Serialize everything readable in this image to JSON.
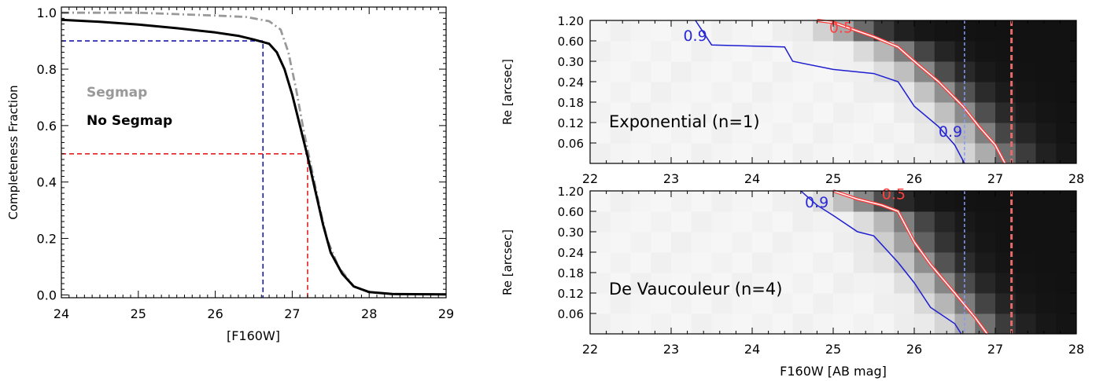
{
  "chart_data": [
    {
      "type": "line",
      "title": "",
      "xlabel": "[F160W]",
      "ylabel": "Completeness Fraction",
      "xlim": [
        24,
        29
      ],
      "ylim": [
        -0.01,
        1.02
      ],
      "xticks": [
        "24",
        "25",
        "26",
        "27",
        "28",
        "29"
      ],
      "yticks": [
        "0.0",
        "0.2",
        "0.4",
        "0.6",
        "0.8",
        "1.0"
      ],
      "grid": false,
      "legend_placement": "center-left",
      "series": [
        {
          "name": "Segmap",
          "color": "#999999",
          "style": "dash-dot",
          "x": [
            24.0,
            24.5,
            25.0,
            25.5,
            26.0,
            26.4,
            26.7,
            26.85,
            26.95,
            27.05,
            27.15,
            27.25,
            27.35,
            27.45,
            27.6,
            27.8,
            28.0,
            28.3,
            29.0
          ],
          "y": [
            1.0,
            1.0,
            1.0,
            0.995,
            0.99,
            0.985,
            0.97,
            0.94,
            0.86,
            0.73,
            0.58,
            0.45,
            0.32,
            0.2,
            0.1,
            0.03,
            0.01,
            0.003,
            0.002
          ]
        },
        {
          "name": "No Segmap",
          "color": "#000000",
          "style": "solid",
          "x": [
            24.0,
            24.5,
            25.0,
            25.5,
            26.0,
            26.3,
            26.5,
            26.7,
            26.8,
            26.9,
            27.0,
            27.1,
            27.2,
            27.3,
            27.4,
            27.5,
            27.65,
            27.8,
            28.0,
            28.3,
            29.0
          ],
          "y": [
            0.975,
            0.968,
            0.958,
            0.945,
            0.93,
            0.918,
            0.905,
            0.89,
            0.86,
            0.8,
            0.71,
            0.6,
            0.49,
            0.37,
            0.25,
            0.15,
            0.075,
            0.03,
            0.01,
            0.003,
            0.002
          ]
        }
      ],
      "reference_lines": [
        {
          "color": "#1a1aa8",
          "x": 26.62,
          "y": 0.9
        },
        {
          "color": "#e02020",
          "x": 27.2,
          "y": 0.5
        }
      ]
    },
    {
      "type": "heatmap",
      "title": "",
      "annotation": "Exponential (n=1)",
      "xlabel": "",
      "ylabel": "Re [arcsec]",
      "xlim": [
        22,
        28
      ],
      "xticks": [
        "22",
        "23",
        "24",
        "25",
        "26",
        "27",
        "28"
      ],
      "y_categories": [
        "0.06",
        "0.12",
        "0.18",
        "0.24",
        "0.30",
        "0.60",
        "1.20"
      ],
      "n_x_bins": 24,
      "cell_values_note": "completeness per bin, 1 = light, 0 = black",
      "contours": [
        {
          "label": "0.9",
          "color": "#1f1fd0",
          "x": [
            23.3,
            23.5,
            24.4,
            24.5,
            25.0,
            25.5,
            25.8,
            26.0,
            26.3,
            26.5,
            26.62
          ],
          "y": [
            7.0,
            5.8,
            5.7,
            5.0,
            4.6,
            4.4,
            4.0,
            2.8,
            1.8,
            0.9,
            0.0
          ]
        },
        {
          "label": "0.5",
          "color": "#ff3a3a",
          "x": [
            24.8,
            25.0,
            25.5,
            25.8,
            26.0,
            26.3,
            26.6,
            26.8,
            27.0,
            27.12
          ],
          "y": [
            7.0,
            6.9,
            6.2,
            5.7,
            5.0,
            4.0,
            2.8,
            1.8,
            0.9,
            0.0
          ]
        }
      ],
      "contour_labels": [
        {
          "text": "0.9",
          "x": 23.15,
          "y": 6.0
        },
        {
          "text": "0.5",
          "x": 24.95,
          "y": 6.4
        },
        {
          "text": "0.9",
          "x": 26.3,
          "y": 1.3
        }
      ],
      "reference_lines": [
        {
          "color": "#8899ff",
          "x": 26.62
        },
        {
          "color": "#e56a6a",
          "x": 27.2
        }
      ]
    },
    {
      "type": "heatmap",
      "title": "",
      "annotation": "De Vaucouleur (n=4)",
      "xlabel": "F160W [AB mag]",
      "ylabel": "Re [arcsec]",
      "xlim": [
        22,
        28
      ],
      "xticks": [
        "22",
        "23",
        "24",
        "25",
        "26",
        "27",
        "28"
      ],
      "y_categories": [
        "0.06",
        "0.12",
        "0.18",
        "0.24",
        "0.30",
        "0.60",
        "1.20"
      ],
      "n_x_bins": 24,
      "cell_values_note": "completeness per bin, 1 = light, 0 = black",
      "contours": [
        {
          "label": "0.9",
          "color": "#1f1fd0",
          "x": [
            24.6,
            24.8,
            25.0,
            25.3,
            25.5,
            25.8,
            26.0,
            26.2,
            26.5,
            26.58
          ],
          "y": [
            7.0,
            6.3,
            5.8,
            5.0,
            4.8,
            3.5,
            2.5,
            1.3,
            0.5,
            0.0
          ]
        },
        {
          "label": "0.5",
          "color": "#ff3a3a",
          "x": [
            25.0,
            25.3,
            25.6,
            25.8,
            26.0,
            26.2,
            26.5,
            26.75,
            26.9
          ],
          "y": [
            7.0,
            6.6,
            6.3,
            6.0,
            4.5,
            3.4,
            2.0,
            0.8,
            0.0
          ]
        }
      ],
      "contour_labels": [
        {
          "text": "0.9",
          "x": 24.65,
          "y": 6.2
        },
        {
          "text": "0.5",
          "x": 25.6,
          "y": 6.6
        }
      ],
      "reference_lines": [
        {
          "color": "#8899ff",
          "x": 26.62
        },
        {
          "color": "#e56a6a",
          "x": 27.2
        }
      ]
    }
  ]
}
